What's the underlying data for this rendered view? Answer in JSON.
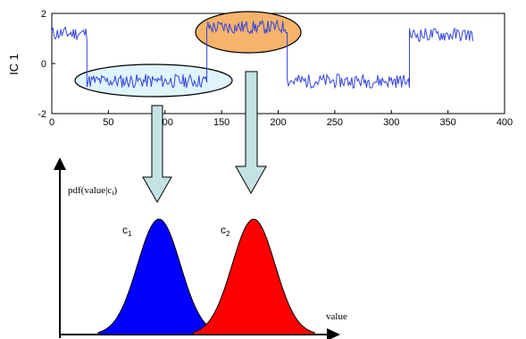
{
  "timeseries": {
    "ylabel": "IC 1",
    "xlim": [
      0,
      400
    ],
    "ylim": [
      -2,
      2
    ],
    "x_ticks": [
      "0",
      "50",
      "100",
      "150",
      "200",
      "250",
      "300",
      "350",
      "400"
    ],
    "y_ticks": [
      "2",
      "0",
      "-2"
    ],
    "segments": [
      {
        "x_start": 0,
        "x_end": 31,
        "level": 1.2
      },
      {
        "x_start": 31,
        "x_end": 137,
        "level": -0.7
      },
      {
        "x_start": 137,
        "x_end": 208,
        "level": 1.45
      },
      {
        "x_start": 208,
        "x_end": 316,
        "level": -0.7
      },
      {
        "x_start": 316,
        "x_end": 372,
        "level": 1.15
      }
    ],
    "line_color": "#3344dd",
    "highlight_c1": {
      "x_range": [
        28,
        140
      ],
      "fill": "#dff4fb"
    },
    "highlight_c2": {
      "x_range": [
        128,
        205
      ],
      "fill": "#f6b36b"
    }
  },
  "pdf": {
    "ylabel_main": "pdf(value|c",
    "ylabel_sub": "i",
    "ylabel_close": ")",
    "xlabel": "value",
    "classes": [
      {
        "label": "c",
        "sub": "1",
        "color": "#0000ff"
      },
      {
        "label": "c",
        "sub": "2",
        "color": "#ff0000"
      }
    ]
  },
  "arrow_color": "#c4e2e4"
}
